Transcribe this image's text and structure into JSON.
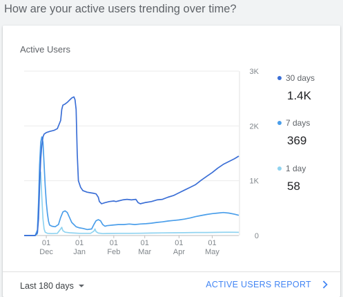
{
  "question": "How are your active users trending over time?",
  "card": {
    "title": "Active Users",
    "range_label": "Last 180 days",
    "report_label": "ACTIVE USERS REPORT"
  },
  "legend": [
    {
      "name": "30 days",
      "value": "1.4K",
      "color": "#3b6fd6"
    },
    {
      "name": "7 days",
      "value": "369",
      "color": "#4a9eea"
    },
    {
      "name": "1 day",
      "value": "58",
      "color": "#8fd3f0"
    }
  ],
  "chart_data": {
    "type": "line",
    "title": "Active Users",
    "x_ticks": [
      {
        "day": "01",
        "month": "Dec",
        "index": 5
      },
      {
        "day": "01",
        "month": "Jan",
        "index": 35
      },
      {
        "day": "01",
        "month": "Feb",
        "index": 66
      },
      {
        "day": "01",
        "month": "Mar",
        "index": 94
      },
      {
        "day": "01",
        "month": "Apr",
        "index": 125
      },
      {
        "day": "01",
        "month": "May",
        "index": 155
      }
    ],
    "y_ticks": [
      "0",
      "1K",
      "2K",
      "3K"
    ],
    "ylim": [
      0,
      3000
    ],
    "xlim": [
      -15,
      179
    ],
    "grid": true,
    "legend_position": "right",
    "series": [
      {
        "name": "30 days",
        "color": "#3b6fd6",
        "points": [
          [
            -15,
            0
          ],
          [
            -10,
            0
          ],
          [
            -5,
            0
          ],
          [
            -3,
            50
          ],
          [
            -2,
            300
          ],
          [
            -1,
            900
          ],
          [
            0,
            1400
          ],
          [
            1,
            1650
          ],
          [
            2,
            1800
          ],
          [
            3,
            1850
          ],
          [
            5,
            1880
          ],
          [
            8,
            1900
          ],
          [
            12,
            1920
          ],
          [
            15,
            1950
          ],
          [
            16,
            2000
          ],
          [
            18,
            2100
          ],
          [
            19,
            2300
          ],
          [
            20,
            2380
          ],
          [
            22,
            2400
          ],
          [
            24,
            2430
          ],
          [
            26,
            2470
          ],
          [
            28,
            2510
          ],
          [
            30,
            2530
          ],
          [
            31,
            2480
          ],
          [
            32,
            2300
          ],
          [
            33,
            1500
          ],
          [
            34,
            1000
          ],
          [
            36,
            880
          ],
          [
            38,
            820
          ],
          [
            42,
            790
          ],
          [
            45,
            780
          ],
          [
            48,
            770
          ],
          [
            50,
            760
          ],
          [
            52,
            700
          ],
          [
            53,
            620
          ],
          [
            55,
            580
          ],
          [
            58,
            600
          ],
          [
            62,
            620
          ],
          [
            66,
            630
          ],
          [
            68,
            620
          ],
          [
            70,
            630
          ],
          [
            74,
            650
          ],
          [
            78,
            660
          ],
          [
            82,
            650
          ],
          [
            86,
            660
          ],
          [
            88,
            600
          ],
          [
            90,
            580
          ],
          [
            94,
            600
          ],
          [
            100,
            620
          ],
          [
            105,
            650
          ],
          [
            110,
            660
          ],
          [
            115,
            700
          ],
          [
            120,
            730
          ],
          [
            125,
            780
          ],
          [
            130,
            830
          ],
          [
            135,
            880
          ],
          [
            140,
            930
          ],
          [
            145,
            1010
          ],
          [
            150,
            1080
          ],
          [
            155,
            1150
          ],
          [
            160,
            1230
          ],
          [
            165,
            1300
          ],
          [
            170,
            1350
          ],
          [
            175,
            1400
          ],
          [
            179,
            1450
          ]
        ]
      },
      {
        "name": "7 days",
        "color": "#4a9eea",
        "points": [
          [
            -15,
            0
          ],
          [
            -10,
            0
          ],
          [
            -5,
            0
          ],
          [
            -3,
            100
          ],
          [
            -2,
            600
          ],
          [
            -1,
            1300
          ],
          [
            0,
            1700
          ],
          [
            1,
            1800
          ],
          [
            2,
            1700
          ],
          [
            3,
            1300
          ],
          [
            4,
            900
          ],
          [
            5,
            600
          ],
          [
            6,
            400
          ],
          [
            7,
            260
          ],
          [
            8,
            190
          ],
          [
            10,
            170
          ],
          [
            13,
            160
          ],
          [
            16,
            200
          ],
          [
            18,
            330
          ],
          [
            20,
            430
          ],
          [
            22,
            450
          ],
          [
            24,
            420
          ],
          [
            26,
            330
          ],
          [
            28,
            240
          ],
          [
            30,
            200
          ],
          [
            32,
            160
          ],
          [
            35,
            140
          ],
          [
            38,
            130
          ],
          [
            42,
            110
          ],
          [
            46,
            120
          ],
          [
            48,
            200
          ],
          [
            50,
            270
          ],
          [
            52,
            290
          ],
          [
            54,
            270
          ],
          [
            56,
            200
          ],
          [
            58,
            170
          ],
          [
            60,
            180
          ],
          [
            65,
            190
          ],
          [
            70,
            200
          ],
          [
            75,
            200
          ],
          [
            80,
            210
          ],
          [
            85,
            200
          ],
          [
            90,
            210
          ],
          [
            95,
            215
          ],
          [
            100,
            225
          ],
          [
            105,
            240
          ],
          [
            110,
            250
          ],
          [
            115,
            265
          ],
          [
            120,
            275
          ],
          [
            125,
            285
          ],
          [
            130,
            300
          ],
          [
            135,
            320
          ],
          [
            140,
            345
          ],
          [
            145,
            365
          ],
          [
            150,
            385
          ],
          [
            155,
            400
          ],
          [
            160,
            410
          ],
          [
            165,
            420
          ],
          [
            170,
            410
          ],
          [
            175,
            390
          ],
          [
            179,
            369
          ]
        ]
      },
      {
        "name": "1 day",
        "color": "#8fd3f0",
        "points": [
          [
            -15,
            0
          ],
          [
            -10,
            0
          ],
          [
            -5,
            0
          ],
          [
            -3,
            30
          ],
          [
            -2,
            500
          ],
          [
            -1,
            1200
          ],
          [
            0,
            1150
          ],
          [
            1,
            700
          ],
          [
            2,
            300
          ],
          [
            3,
            120
          ],
          [
            4,
            60
          ],
          [
            6,
            40
          ],
          [
            10,
            35
          ],
          [
            15,
            40
          ],
          [
            18,
            120
          ],
          [
            19,
            150
          ],
          [
            20,
            90
          ],
          [
            22,
            60
          ],
          [
            26,
            50
          ],
          [
            30,
            45
          ],
          [
            35,
            40
          ],
          [
            40,
            40
          ],
          [
            45,
            40
          ],
          [
            48,
            80
          ],
          [
            49,
            120
          ],
          [
            50,
            70
          ],
          [
            52,
            45
          ],
          [
            56,
            35
          ],
          [
            60,
            38
          ],
          [
            70,
            40
          ],
          [
            80,
            40
          ],
          [
            90,
            42
          ],
          [
            100,
            45
          ],
          [
            110,
            48
          ],
          [
            120,
            50
          ],
          [
            130,
            52
          ],
          [
            140,
            55
          ],
          [
            150,
            56
          ],
          [
            160,
            58
          ],
          [
            170,
            60
          ],
          [
            179,
            58
          ]
        ]
      }
    ]
  }
}
